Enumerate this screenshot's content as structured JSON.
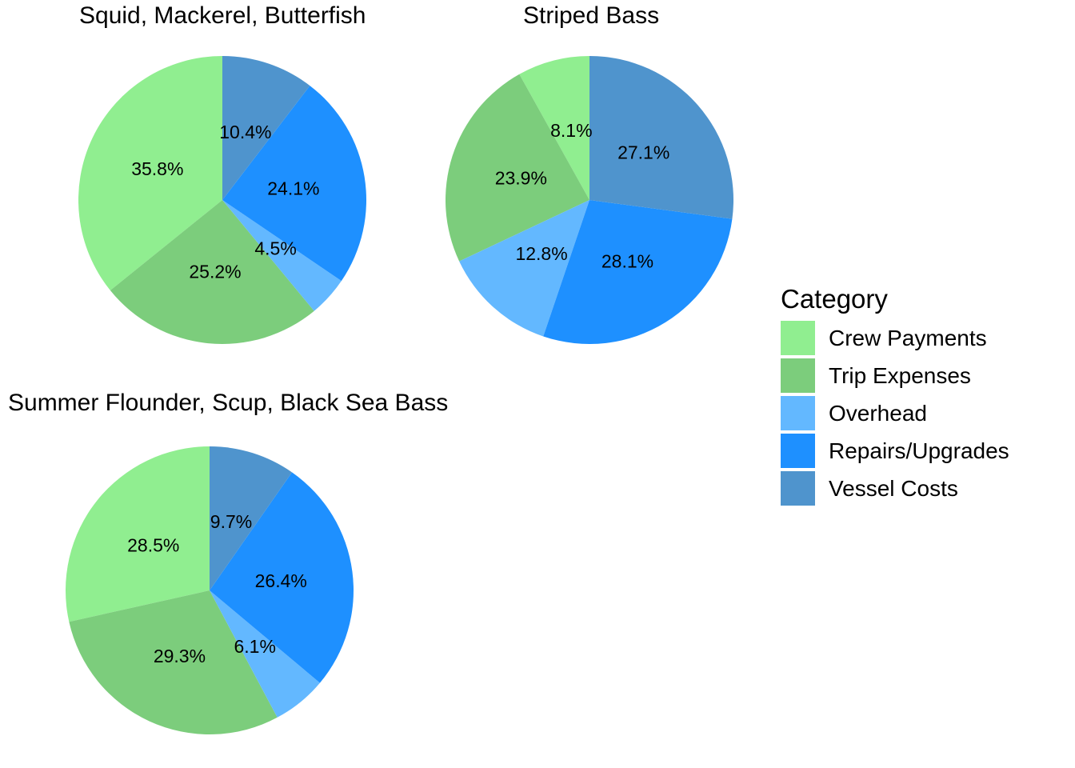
{
  "figure": {
    "background": "#FFFFFF",
    "text_color": "#000000"
  },
  "legend": {
    "title": "Category",
    "position": "right",
    "items": [
      {
        "label": "Crew Payments",
        "color": "#90EE90"
      },
      {
        "label": "Trip Expenses",
        "color": "#7CCD7C"
      },
      {
        "label": "Overhead",
        "color": "#63B8FF"
      },
      {
        "label": "Repairs/Upgrades",
        "color": "#1E90FF"
      },
      {
        "label": "Vessel Costs",
        "color": "#4F94CD"
      }
    ]
  },
  "chart_data": [
    {
      "type": "pie",
      "title": "Squid, Mackerel, Butterfish",
      "categories": [
        "Crew Payments",
        "Trip Expenses",
        "Overhead",
        "Repairs/Upgrades",
        "Vessel Costs"
      ],
      "values": [
        35.8,
        25.2,
        4.5,
        24.1,
        10.4
      ],
      "labels": [
        "35.8%",
        "25.2%",
        "4.5%",
        "24.1%",
        "10.4%"
      ],
      "colors": [
        "#90EE90",
        "#7CCD7C",
        "#63B8FF",
        "#1E90FF",
        "#4F94CD"
      ],
      "start": "12-oclock",
      "winding": "counterclockwise",
      "label_radius_fraction": 0.5
    },
    {
      "type": "pie",
      "title": "Striped Bass",
      "categories": [
        "Crew Payments",
        "Trip Expenses",
        "Overhead",
        "Repairs/Upgrades",
        "Vessel Costs"
      ],
      "values": [
        8.1,
        23.9,
        12.8,
        28.1,
        27.1
      ],
      "labels": [
        "8.1%",
        "23.9%",
        "12.8%",
        "28.1%",
        "27.1%"
      ],
      "colors": [
        "#90EE90",
        "#7CCD7C",
        "#63B8FF",
        "#1E90FF",
        "#4F94CD"
      ],
      "start": "12-oclock",
      "winding": "counterclockwise",
      "label_radius_fraction": 0.5
    },
    {
      "type": "pie",
      "title": "Summer Flounder, Scup, Black Sea Bass",
      "categories": [
        "Crew Payments",
        "Trip Expenses",
        "Overhead",
        "Repairs/Upgrades",
        "Vessel Costs"
      ],
      "values": [
        28.5,
        29.3,
        6.1,
        26.4,
        9.7
      ],
      "labels": [
        "28.5%",
        "29.3%",
        "6.1%",
        "26.4%",
        "9.7%"
      ],
      "colors": [
        "#90EE90",
        "#7CCD7C",
        "#63B8FF",
        "#1E90FF",
        "#4F94CD"
      ],
      "start": "12-oclock",
      "winding": "counterclockwise",
      "label_radius_fraction": 0.5
    }
  ]
}
